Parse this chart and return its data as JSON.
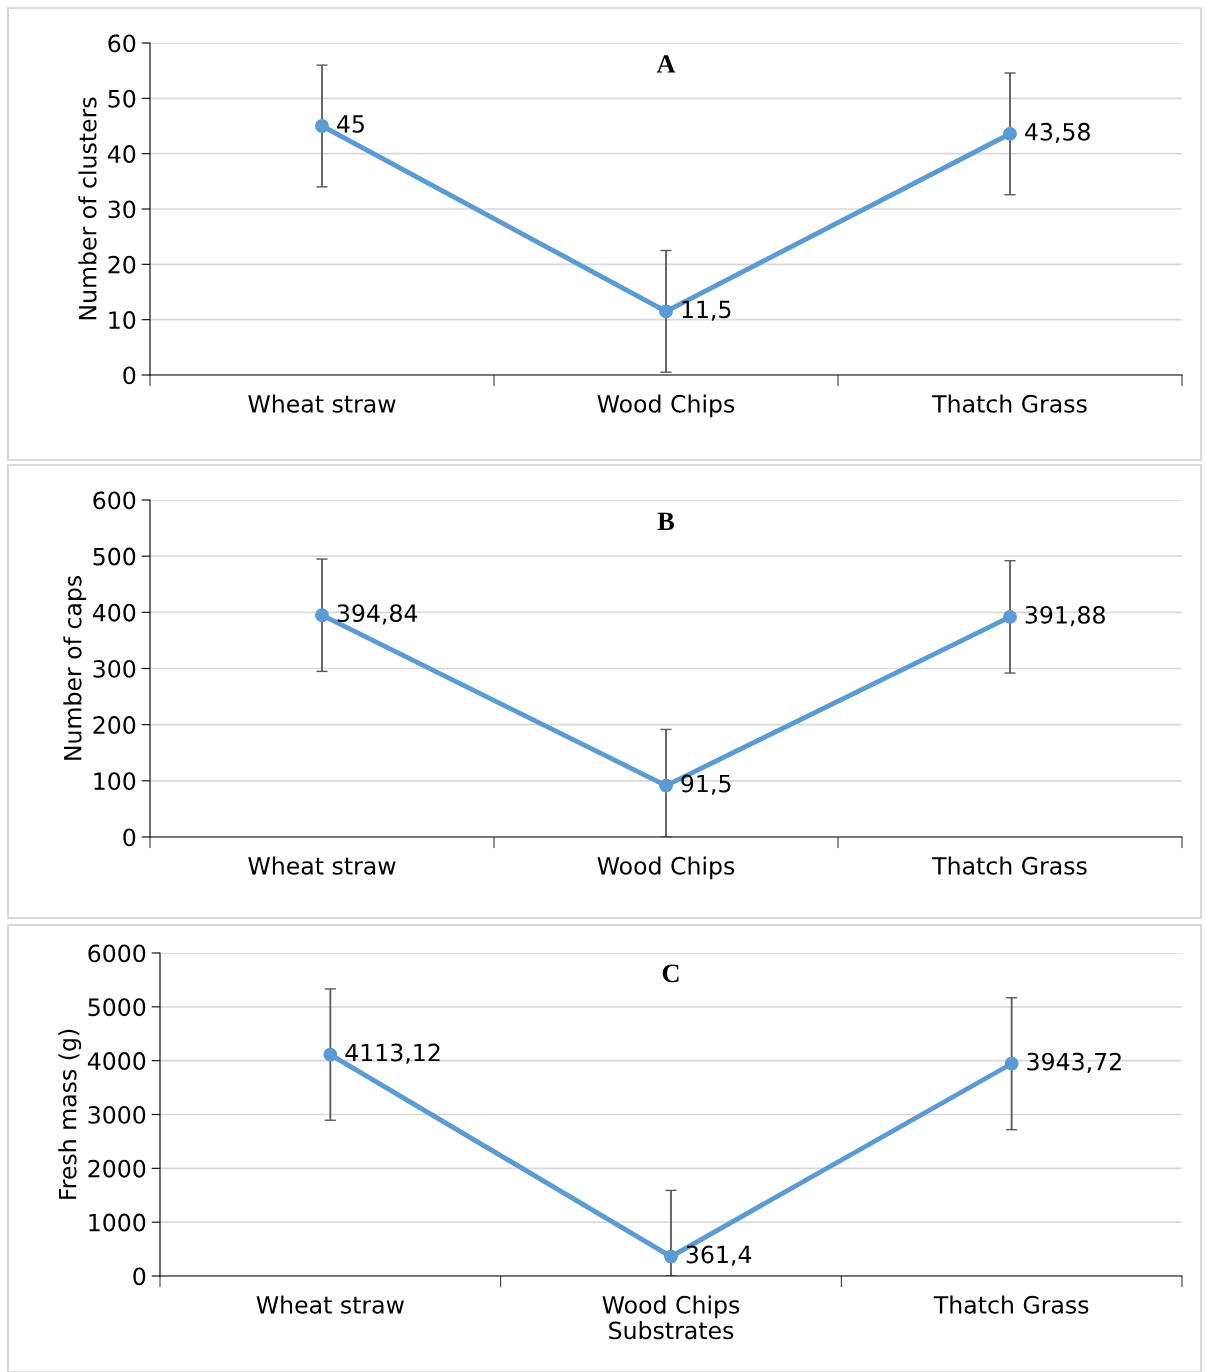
{
  "chart_data": [
    {
      "type": "line",
      "title": "A",
      "ylabel": "Number of clusters",
      "categories": [
        "Wheat straw",
        "Wood Chips",
        "Thatch Grass"
      ],
      "series": [
        {
          "color": "#5b9bd5",
          "values": [
            45,
            11.5,
            43.58
          ],
          "value_labels": [
            "45",
            "11,5",
            "43,58"
          ],
          "errors": [
            11,
            11,
            11
          ]
        }
      ],
      "ylim": [
        0,
        60
      ],
      "yticks": [
        0,
        10,
        20,
        30,
        40,
        50,
        60
      ],
      "grid": "y",
      "marker": "circle",
      "line_style": "solid"
    },
    {
      "type": "line",
      "title": "B",
      "ylabel": "Number of caps",
      "categories": [
        "Wheat straw",
        "Wood Chips",
        "Thatch Grass"
      ],
      "series": [
        {
          "color": "#5b9bd5",
          "values": [
            394.84,
            91.5,
            391.88
          ],
          "value_labels": [
            "394,84",
            "91,5",
            "391,88"
          ],
          "errors": [
            100,
            [
              0,
              191.5
            ],
            100
          ]
        }
      ],
      "ylim": [
        0,
        600
      ],
      "yticks": [
        0,
        100,
        200,
        300,
        400,
        500,
        600
      ],
      "grid": "y",
      "marker": "circle",
      "line_style": "solid"
    },
    {
      "type": "line",
      "title": "C",
      "ylabel": "Fresh mass (g)",
      "xlabel": "Substrates",
      "categories": [
        "Wheat straw",
        "Wood Chips",
        "Thatch Grass"
      ],
      "series": [
        {
          "color": "#5b9bd5",
          "values": [
            4113.12,
            361.4,
            3943.72
          ],
          "value_labels": [
            "4113,12",
            "361,4",
            "3943,72"
          ],
          "errors": [
            1220,
            [
              0,
              1590
            ],
            1225
          ]
        }
      ],
      "ylim": [
        0,
        6000
      ],
      "yticks": [
        0,
        1000,
        2000,
        3000,
        4000,
        5000,
        6000
      ],
      "grid": "y",
      "marker": "circle",
      "line_style": "solid"
    }
  ]
}
